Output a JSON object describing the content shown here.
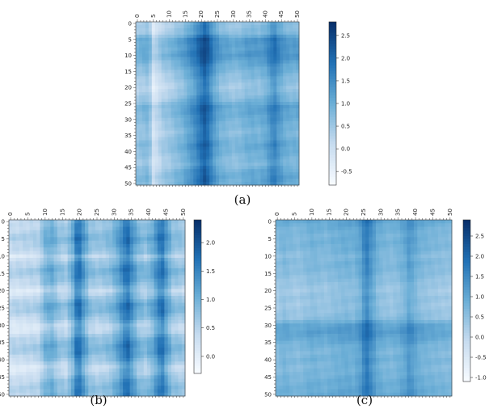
{
  "chart_data": [
    {
      "type": "heatmap",
      "caption": "(a)",
      "x_ticks": [
        "0",
        "5",
        "10",
        "15",
        "20",
        "25",
        "30",
        "35",
        "40",
        "45",
        "50"
      ],
      "y_ticks": [
        "0",
        "5",
        "10",
        "15",
        "20",
        "25",
        "30",
        "35",
        "40",
        "45",
        "50"
      ],
      "colorbar_ticks": [
        "2.5",
        "2.0",
        "1.5",
        "1.0",
        "0.5",
        "0.0",
        "-0.5"
      ],
      "colorbar_values": [
        2.5,
        2.0,
        1.5,
        1.0,
        0.5,
        0.0,
        -0.5
      ],
      "vmin": -0.8,
      "vmax": 2.8,
      "colormap": [
        "#f7fbff",
        "#c6dbef",
        "#6baed6",
        "#2171b5",
        "#08306b"
      ],
      "grid_size": 51,
      "col_profile": [
        [
          0,
          0.2
        ],
        [
          3,
          0.35
        ],
        [
          4,
          0.15
        ],
        [
          5,
          -0.45
        ],
        [
          6,
          -0.3
        ],
        [
          8,
          0.05
        ],
        [
          10,
          0.15
        ],
        [
          12,
          0.35
        ],
        [
          14,
          0.5
        ],
        [
          16,
          0.8
        ],
        [
          18,
          1.1
        ],
        [
          20,
          1.55
        ],
        [
          21,
          1.75
        ],
        [
          22,
          1.55
        ],
        [
          24,
          0.9
        ],
        [
          26,
          0.55
        ],
        [
          28,
          0.45
        ],
        [
          30,
          0.35
        ],
        [
          32,
          0.4
        ],
        [
          34,
          0.55
        ],
        [
          36,
          0.6
        ],
        [
          38,
          0.55
        ],
        [
          40,
          0.7
        ],
        [
          42,
          1.1
        ],
        [
          43,
          1.2
        ],
        [
          44,
          0.95
        ],
        [
          46,
          0.65
        ],
        [
          48,
          0.55
        ],
        [
          50,
          0.55
        ]
      ],
      "row_profile": [
        [
          0,
          0.1
        ],
        [
          3,
          0.2
        ],
        [
          5,
          0.75
        ],
        [
          8,
          0.7
        ],
        [
          10,
          0.8
        ],
        [
          12,
          0.6
        ],
        [
          14,
          0.4
        ],
        [
          16,
          0.25
        ],
        [
          18,
          0.1
        ],
        [
          20,
          0.0
        ],
        [
          22,
          0.1
        ],
        [
          24,
          0.3
        ],
        [
          26,
          0.6
        ],
        [
          28,
          0.55
        ],
        [
          30,
          0.45
        ],
        [
          32,
          0.35
        ],
        [
          34,
          0.25
        ],
        [
          36,
          0.35
        ],
        [
          38,
          0.5
        ],
        [
          40,
          0.4
        ],
        [
          42,
          0.3
        ],
        [
          44,
          0.2
        ],
        [
          46,
          0.45
        ],
        [
          48,
          0.55
        ],
        [
          50,
          0.5
        ]
      ]
    },
    {
      "type": "heatmap",
      "caption": "(b)",
      "x_ticks": [
        "0",
        "5",
        "10",
        "15",
        "20",
        "25",
        "30",
        "35",
        "40",
        "45",
        "50"
      ],
      "y_ticks": [
        "0",
        "5",
        "10",
        "15",
        "20",
        "25",
        "30",
        "35",
        "40",
        "45",
        "50"
      ],
      "colorbar_ticks": [
        "2.0",
        "1.5",
        "1.0",
        "0.5",
        "0.0"
      ],
      "colorbar_values": [
        2.0,
        1.5,
        1.0,
        0.5,
        0.0
      ],
      "vmin": -0.3,
      "vmax": 2.4,
      "colormap": [
        "#f7fbff",
        "#c6dbef",
        "#6baed6",
        "#2171b5",
        "#08306b"
      ],
      "grid_size": 51,
      "col_profile": [
        [
          0,
          0.0
        ],
        [
          4,
          0.05
        ],
        [
          8,
          0.1
        ],
        [
          10,
          0.55
        ],
        [
          12,
          0.65
        ],
        [
          14,
          0.35
        ],
        [
          16,
          0.25
        ],
        [
          18,
          0.7
        ],
        [
          19,
          1.2
        ],
        [
          20,
          1.25
        ],
        [
          21,
          0.9
        ],
        [
          23,
          0.4
        ],
        [
          25,
          0.3
        ],
        [
          27,
          0.35
        ],
        [
          29,
          0.45
        ],
        [
          31,
          0.75
        ],
        [
          33,
          1.2
        ],
        [
          34,
          1.3
        ],
        [
          35,
          1.0
        ],
        [
          37,
          0.55
        ],
        [
          39,
          0.4
        ],
        [
          41,
          0.65
        ],
        [
          43,
          1.15
        ],
        [
          44,
          1.25
        ],
        [
          45,
          0.9
        ],
        [
          47,
          0.4
        ],
        [
          50,
          0.3
        ]
      ],
      "row_profile": [
        [
          0,
          0.3
        ],
        [
          3,
          0.4
        ],
        [
          5,
          0.55
        ],
        [
          7,
          0.4
        ],
        [
          9,
          0.3
        ],
        [
          10,
          0.05
        ],
        [
          12,
          0.35
        ],
        [
          14,
          0.55
        ],
        [
          16,
          0.45
        ],
        [
          18,
          0.3
        ],
        [
          20,
          0.0
        ],
        [
          22,
          0.25
        ],
        [
          24,
          0.55
        ],
        [
          26,
          0.5
        ],
        [
          28,
          0.3
        ],
        [
          30,
          0.0
        ],
        [
          32,
          0.1
        ],
        [
          34,
          0.4
        ],
        [
          36,
          0.55
        ],
        [
          38,
          0.5
        ],
        [
          40,
          0.3
        ],
        [
          42,
          0.0
        ],
        [
          44,
          0.1
        ],
        [
          46,
          0.35
        ],
        [
          48,
          0.45
        ],
        [
          50,
          0.45
        ]
      ]
    },
    {
      "type": "heatmap",
      "caption": "(c)",
      "x_ticks": [
        "0",
        "5",
        "10",
        "15",
        "20",
        "25",
        "30",
        "35",
        "40",
        "45",
        "50"
      ],
      "y_ticks": [
        "0",
        "5",
        "10",
        "15",
        "20",
        "25",
        "30",
        "35",
        "40",
        "45",
        "50"
      ],
      "colorbar_ticks": [
        "2.5",
        "2.0",
        "1.5",
        "1.0",
        "0.5",
        "0.0",
        "-0.5",
        "-1.0"
      ],
      "colorbar_values": [
        2.5,
        2.0,
        1.5,
        1.0,
        0.5,
        0.0,
        -0.5,
        -1.0
      ],
      "vmin": -1.1,
      "vmax": 2.9,
      "colormap": [
        "#f7fbff",
        "#c6dbef",
        "#6baed6",
        "#2171b5",
        "#08306b"
      ],
      "grid_size": 51,
      "col_profile": [
        [
          0,
          0.3
        ],
        [
          2,
          0.45
        ],
        [
          4,
          0.35
        ],
        [
          6,
          0.3
        ],
        [
          8,
          0.4
        ],
        [
          10,
          0.5
        ],
        [
          12,
          0.45
        ],
        [
          14,
          0.4
        ],
        [
          16,
          0.5
        ],
        [
          18,
          0.55
        ],
        [
          20,
          0.6
        ],
        [
          22,
          0.55
        ],
        [
          24,
          0.8
        ],
        [
          25,
          1.2
        ],
        [
          26,
          1.4
        ],
        [
          27,
          1.1
        ],
        [
          29,
          0.6
        ],
        [
          31,
          0.45
        ],
        [
          33,
          0.4
        ],
        [
          35,
          0.5
        ],
        [
          37,
          0.7
        ],
        [
          38,
          0.95
        ],
        [
          39,
          0.85
        ],
        [
          41,
          0.55
        ],
        [
          43,
          0.45
        ],
        [
          45,
          0.4
        ],
        [
          47,
          0.35
        ],
        [
          50,
          0.3
        ]
      ],
      "row_profile": [
        [
          0,
          0.55
        ],
        [
          2,
          0.4
        ],
        [
          4,
          0.3
        ],
        [
          6,
          0.35
        ],
        [
          8,
          0.3
        ],
        [
          10,
          0.15
        ],
        [
          12,
          0.25
        ],
        [
          14,
          0.2
        ],
        [
          16,
          0.1
        ],
        [
          18,
          0.0
        ],
        [
          20,
          -0.1
        ],
        [
          22,
          0.0
        ],
        [
          24,
          -0.05
        ],
        [
          26,
          0.0
        ],
        [
          28,
          0.1
        ],
        [
          30,
          0.6
        ],
        [
          32,
          0.7
        ],
        [
          34,
          0.55
        ],
        [
          36,
          0.35
        ],
        [
          38,
          0.25
        ],
        [
          40,
          0.35
        ],
        [
          42,
          0.25
        ],
        [
          44,
          0.3
        ],
        [
          46,
          0.4
        ],
        [
          48,
          0.45
        ],
        [
          50,
          0.5
        ]
      ]
    }
  ]
}
